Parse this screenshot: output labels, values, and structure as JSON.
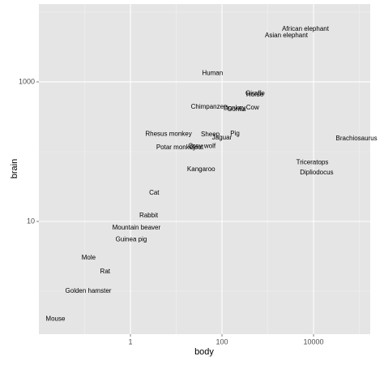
{
  "chart_data": {
    "type": "text-scatter",
    "x_label": "body",
    "y_label": "brain",
    "log_x": true,
    "log_y": true,
    "grid": true,
    "names": [
      "Mountain beaver",
      "Cow",
      "Grey wolf",
      "Goat",
      "Guinea pig",
      "Dipliodocus",
      "Asian elephant",
      "Donkey",
      "Horse",
      "Potar monkey",
      "Cat",
      "Giraffe",
      "Gorilla",
      "Human",
      "African elephant",
      "Triceratops",
      "Rhesus monkey",
      "Kangaroo",
      "Golden hamster",
      "Mouse",
      "Rabbit",
      "Sheep",
      "Jaguar",
      "Chimpanzee",
      "Rat",
      "Brachiosaurus",
      "Mole",
      "Pig"
    ],
    "x": [
      1.35,
      465,
      36.33,
      27.66,
      1.04,
      11700,
      2547,
      187.1,
      521,
      10,
      3.3,
      529,
      207,
      62,
      6654,
      9400,
      6.8,
      35,
      0.12,
      0.023,
      2.5,
      55.5,
      100,
      52.16,
      0.28,
      87000,
      0.122,
      192
    ],
    "y": [
      8.1,
      423,
      119.5,
      115,
      5.5,
      50,
      4603,
      419,
      655,
      115,
      25.6,
      680,
      406,
      1320,
      5712,
      70,
      179,
      56,
      1,
      0.4,
      12.1,
      175,
      157,
      440,
      1.9,
      154.5,
      3,
      180
    ],
    "xlim": [
      0.01,
      173000
    ],
    "ylim": [
      0.242,
      13060
    ],
    "xticks": [
      1,
      100,
      10000
    ],
    "yticks": [
      10,
      1000
    ]
  }
}
